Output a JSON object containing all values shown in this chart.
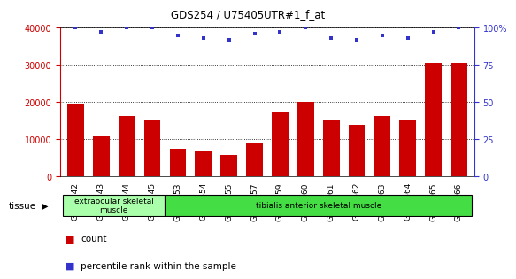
{
  "title": "GDS254 / U75405UTR#1_f_at",
  "categories": [
    "GSM4242",
    "GSM4243",
    "GSM4244",
    "GSM4245",
    "GSM5553",
    "GSM5554",
    "GSM5555",
    "GSM5557",
    "GSM5559",
    "GSM5560",
    "GSM5561",
    "GSM5562",
    "GSM5563",
    "GSM5564",
    "GSM5565",
    "GSM5566"
  ],
  "counts": [
    19500,
    11000,
    16200,
    15000,
    7400,
    6800,
    5800,
    9000,
    17500,
    20000,
    15000,
    13800,
    16200,
    15000,
    30500,
    30500
  ],
  "percentiles": [
    100,
    97,
    100,
    100,
    95,
    93,
    92,
    96,
    97,
    100,
    93,
    92,
    95,
    93,
    97,
    100
  ],
  "bar_color": "#cc0000",
  "dot_color": "#3333cc",
  "left_axis_color": "#cc0000",
  "right_axis_color": "#3333cc",
  "ylim_left": [
    0,
    40000
  ],
  "ylim_right": [
    0,
    100
  ],
  "yticks_left": [
    0,
    10000,
    20000,
    30000,
    40000
  ],
  "yticks_right": [
    0,
    25,
    50,
    75,
    100
  ],
  "tissue_groups": [
    {
      "label": "extraocular skeletal\nmuscle",
      "start": 0,
      "end": 4,
      "color": "#aaffaa"
    },
    {
      "label": "tibialis anterior skeletal muscle",
      "start": 4,
      "end": 16,
      "color": "#44dd44"
    }
  ],
  "tissue_label": "tissue",
  "background_color": "#ffffff",
  "grid_color": "#000000"
}
